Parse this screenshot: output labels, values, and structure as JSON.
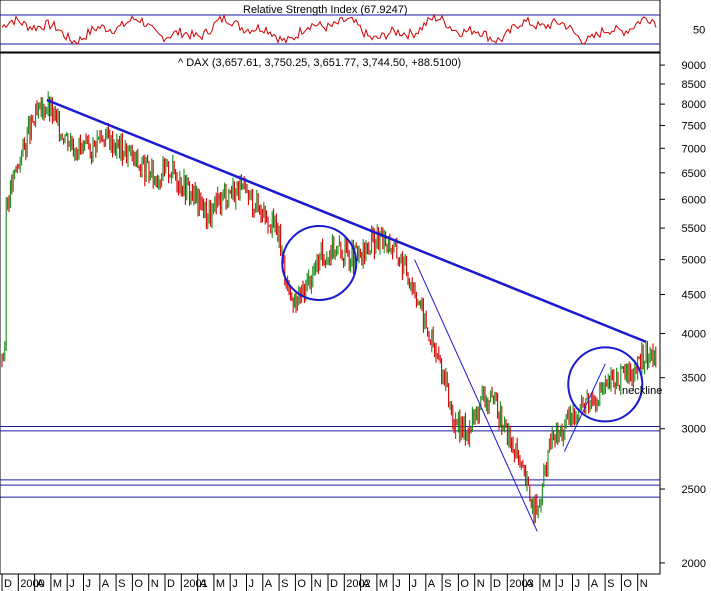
{
  "rsi_panel": {
    "title": "Relative Strength Index (67.9247)",
    "ticks": [
      50
    ],
    "upper_level": 70,
    "lower_level": 30,
    "line_color": "#d40000"
  },
  "price_panel": {
    "title": "^ DAX (3,657.61, 3,750.25, 3,651.77, 3,744.50, +88.5100)",
    "y_axis_labels": [
      9000,
      8500,
      8000,
      7500,
      7000,
      6500,
      6000,
      5500,
      5000,
      4500,
      4000,
      3500,
      3000,
      2500,
      2000
    ],
    "scale": "log",
    "annotation_label": "neckline",
    "annotation_color": "#e01ad0"
  },
  "time_axis": {
    "labels": [
      "D",
      "2000",
      "A",
      "M",
      "J",
      "J",
      "A",
      "S",
      "O",
      "N",
      "D",
      "2001",
      "A",
      "M",
      "J",
      "J",
      "A",
      "S",
      "O",
      "N",
      "D",
      "2002",
      "A",
      "M",
      "J",
      "J",
      "A",
      "S",
      "O",
      "N",
      "D",
      "2003",
      "A",
      "M",
      "J",
      "J",
      "A",
      "S",
      "O",
      "N"
    ]
  },
  "chart_data": {
    "type": "line",
    "series": [
      {
        "x": [
          "1999-12",
          "2000-01",
          "2000-02",
          "2000-03",
          "2000-04",
          "2000-05",
          "2000-06",
          "2000-07",
          "2000-08",
          "2000-09",
          "2000-10",
          "2000-11",
          "2000-12",
          "2001-01",
          "2001-02",
          "2001-03",
          "2001-04",
          "2001-05",
          "2001-06",
          "2001-07",
          "2001-08",
          "2001-09",
          "2001-10",
          "2001-11",
          "2001-12",
          "2002-01",
          "2002-02",
          "2002-03",
          "2002-04",
          "2002-05",
          "2002-06",
          "2002-07",
          "2002-08",
          "2002-09",
          "2002-10",
          "2002-11",
          "2002-12",
          "2003-01",
          "2003-02",
          "2003-03",
          "2003-04",
          "2003-05",
          "2003-06",
          "2003-07",
          "2003-08",
          "2003-09",
          "2003-10",
          "2003-11"
        ],
        "values": [
          5900,
          6800,
          7600,
          8000,
          7400,
          7100,
          6900,
          7300,
          7100,
          6900,
          6600,
          6400,
          6600,
          6300,
          6000,
          5700,
          6100,
          6200,
          6000,
          5800,
          5400,
          4300,
          4600,
          5000,
          5200,
          5100,
          5000,
          5300,
          5300,
          5000,
          4600,
          4000,
          3600,
          3000,
          3000,
          3300,
          3200,
          2900,
          2600,
          2300,
          2900,
          3000,
          3200,
          3300,
          3400,
          3500,
          3550,
          3744
        ]
      }
    ],
    "trendlines": [
      {
        "from": [
          "2000-03",
          8100
        ],
        "to": [
          "2003-11",
          3900
        ]
      },
      {
        "from": [
          "2002-06",
          5000
        ],
        "to": [
          "2003-03",
          2200
        ]
      },
      {
        "from": [
          "2003-05",
          2800
        ],
        "to": [
          "2003-08",
          3650
        ]
      }
    ],
    "horizontal_lines": [
      3020,
      2980,
      2570,
      2530,
      2440
    ],
    "circles": [
      {
        "center": [
          "2001-11",
          4950
        ]
      },
      {
        "center": [
          "2003-08",
          3430
        ]
      }
    ],
    "ylim": [
      1950,
      9200
    ],
    "y_scale": "log",
    "grid": false,
    "xlabel": "",
    "ylabel": ""
  }
}
